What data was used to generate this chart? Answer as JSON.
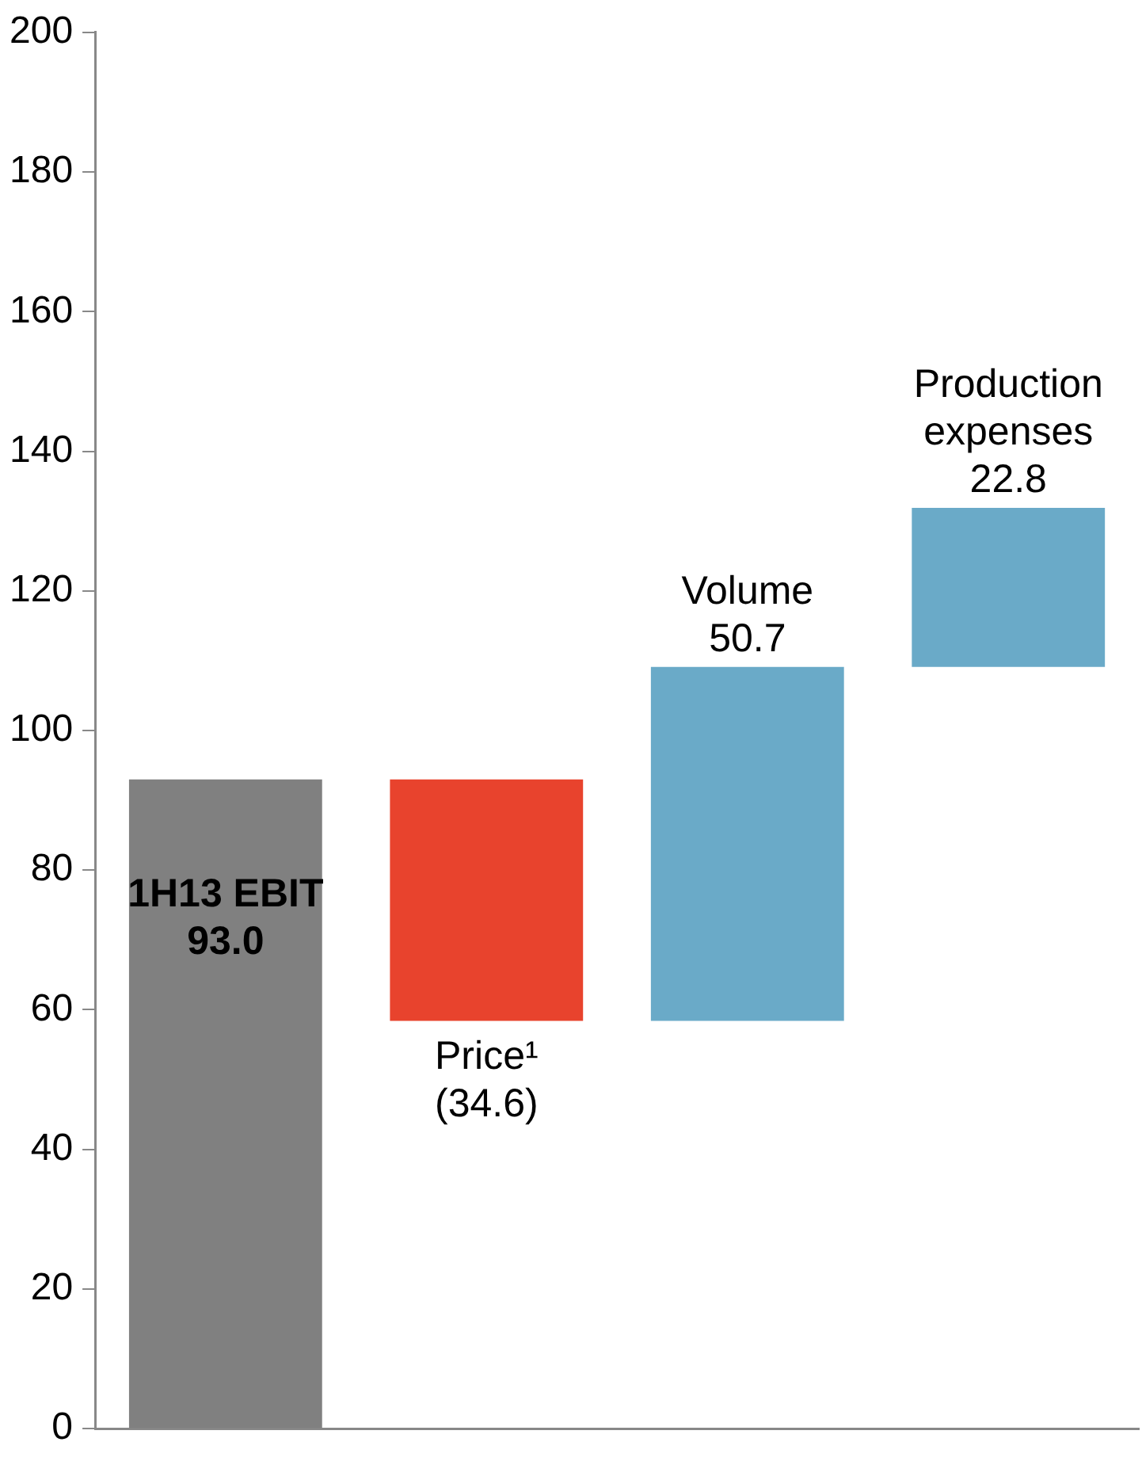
{
  "chart_data": {
    "type": "bar",
    "categories": [
      "1H13 EBIT",
      "Price¹",
      "Volume",
      "Production expenses"
    ],
    "values": [
      93.0,
      -34.6,
      50.7,
      22.8
    ],
    "base": [
      0,
      93.0,
      58.4,
      109.1
    ],
    "colors": [
      "#808080",
      "#e8432d",
      "#6aaac8",
      "#6aaac8"
    ],
    "value_labels": [
      "93.0",
      "(34.6)",
      "50.7",
      "22.8"
    ],
    "ylim": [
      0,
      200
    ],
    "yticks": [
      0,
      20,
      40,
      60,
      80,
      100,
      120,
      140,
      160,
      180,
      200
    ],
    "grid": false,
    "legend": false
  }
}
